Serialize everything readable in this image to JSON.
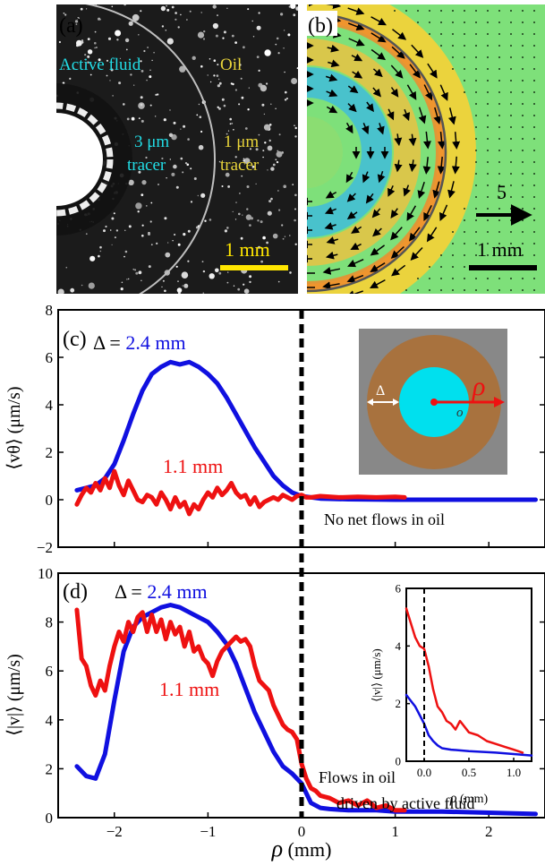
{
  "panel_a": {
    "label": "(a)",
    "active_fluid": "Active fluid",
    "oil": "Oil",
    "tracer3_l1": "3 μm",
    "tracer3_l2": "tracer",
    "tracer1_l1": "1 μm",
    "tracer1_l2": "tracer",
    "scale_label": "1 mm",
    "colors": {
      "active_text": "#22dde6",
      "oil_text": "#e8d43a",
      "scalebar": "#ffe600"
    }
  },
  "panel_b": {
    "label": "(b)",
    "arrow_scale": "5",
    "scale_label": "1 mm"
  },
  "chart_data": [
    {
      "type": "line",
      "panel": "(c)",
      "ylabel": "⟨vθ⟩ (μm/s)",
      "xlim": [
        -2.6,
        2.6
      ],
      "ylim": [
        -2,
        8
      ],
      "yticks": [
        -2,
        0,
        2,
        4,
        6,
        8
      ],
      "delta_prefix": "Δ = ",
      "annotation": "No net flows in oil",
      "series": [
        {
          "name": "2.4 mm",
          "color": "#1010e0",
          "x": [
            -2.4,
            -2.3,
            -2.2,
            -2.1,
            -2.0,
            -1.9,
            -1.8,
            -1.7,
            -1.6,
            -1.5,
            -1.4,
            -1.3,
            -1.2,
            -1.1,
            -1.0,
            -0.9,
            -0.8,
            -0.7,
            -0.6,
            -0.5,
            -0.4,
            -0.3,
            -0.2,
            -0.1,
            0.0,
            0.2,
            0.5,
            1.0,
            1.5,
            2.0,
            2.5
          ],
          "y": [
            0.4,
            0.5,
            0.6,
            0.9,
            1.5,
            2.5,
            3.6,
            4.6,
            5.3,
            5.6,
            5.8,
            5.7,
            5.8,
            5.6,
            5.3,
            4.9,
            4.3,
            3.6,
            2.9,
            2.2,
            1.6,
            1.0,
            0.6,
            0.3,
            0.15,
            0.05,
            0.02,
            0.0,
            0.0,
            0.0,
            0.0
          ]
        },
        {
          "name": "1.1 mm",
          "color": "#ee1111",
          "x": [
            -2.4,
            -2.35,
            -2.3,
            -2.25,
            -2.2,
            -2.15,
            -2.1,
            -2.05,
            -2.0,
            -1.95,
            -1.9,
            -1.85,
            -1.8,
            -1.75,
            -1.7,
            -1.65,
            -1.6,
            -1.55,
            -1.5,
            -1.45,
            -1.4,
            -1.35,
            -1.3,
            -1.25,
            -1.2,
            -1.15,
            -1.1,
            -1.05,
            -1.0,
            -0.95,
            -0.9,
            -0.85,
            -0.8,
            -0.75,
            -0.7,
            -0.65,
            -0.6,
            -0.55,
            -0.5,
            -0.45,
            -0.4,
            -0.35,
            -0.3,
            -0.25,
            -0.2,
            -0.15,
            -0.1,
            -0.05,
            0.0,
            0.05,
            0.1,
            0.2,
            0.4,
            0.6,
            0.8,
            1.0,
            1.1
          ],
          "y": [
            -0.2,
            0.2,
            0.5,
            0.3,
            0.7,
            0.4,
            0.9,
            0.5,
            1.2,
            0.6,
            0.2,
            0.8,
            0.4,
            0.0,
            -0.1,
            0.2,
            0.1,
            -0.2,
            0.3,
            0.0,
            -0.4,
            0.1,
            -0.3,
            -0.1,
            -0.6,
            -0.2,
            -0.4,
            0.0,
            0.3,
            0.1,
            0.5,
            0.2,
            0.4,
            0.7,
            0.3,
            0.1,
            0.2,
            -0.2,
            0.1,
            -0.3,
            -0.1,
            0.0,
            0.1,
            0.0,
            0.2,
            0.1,
            0.0,
            0.15,
            0.2,
            0.1,
            0.1,
            0.15,
            0.1,
            0.12,
            0.1,
            0.12,
            0.1
          ]
        }
      ]
    },
    {
      "type": "line",
      "panel": "(d)",
      "xlabel_sym": "ρ",
      "xlabel_unit": " (mm)",
      "ylabel": "⟨|v|⟩ (μm/s)",
      "xlim": [
        -2.6,
        2.6
      ],
      "ylim": [
        0,
        10
      ],
      "xticks": [
        -2,
        -1,
        0,
        1,
        2
      ],
      "yticks": [
        0,
        2,
        4,
        6,
        8,
        10
      ],
      "delta_prefix": "Δ = ",
      "annotation_l1": "Flows in oil",
      "annotation_l2": "driven by active fluid",
      "series": [
        {
          "name": "2.4 mm",
          "color": "#1010e0",
          "x": [
            -2.4,
            -2.3,
            -2.2,
            -2.1,
            -2.0,
            -1.9,
            -1.8,
            -1.7,
            -1.6,
            -1.5,
            -1.4,
            -1.3,
            -1.2,
            -1.1,
            -1.0,
            -0.9,
            -0.8,
            -0.7,
            -0.6,
            -0.5,
            -0.4,
            -0.3,
            -0.2,
            -0.1,
            0.0,
            0.1,
            0.2,
            0.3,
            0.5,
            0.8,
            1.0,
            1.5,
            2.0,
            2.5
          ],
          "y": [
            2.1,
            1.7,
            1.6,
            2.6,
            4.8,
            6.8,
            7.8,
            8.2,
            8.4,
            8.6,
            8.7,
            8.6,
            8.4,
            8.2,
            8.0,
            7.6,
            7.1,
            6.3,
            5.3,
            4.3,
            3.5,
            2.7,
            2.1,
            1.8,
            1.4,
            0.6,
            0.4,
            0.35,
            0.3,
            0.3,
            0.25,
            0.25,
            0.2,
            0.15
          ]
        },
        {
          "name": "1.1 mm",
          "color": "#ee1111",
          "x": [
            -2.4,
            -2.35,
            -2.3,
            -2.25,
            -2.2,
            -2.15,
            -2.1,
            -2.05,
            -2.0,
            -1.95,
            -1.9,
            -1.85,
            -1.8,
            -1.75,
            -1.7,
            -1.65,
            -1.6,
            -1.55,
            -1.5,
            -1.45,
            -1.4,
            -1.35,
            -1.3,
            -1.25,
            -1.2,
            -1.15,
            -1.1,
            -1.05,
            -1.0,
            -0.95,
            -0.9,
            -0.85,
            -0.8,
            -0.75,
            -0.7,
            -0.65,
            -0.6,
            -0.55,
            -0.5,
            -0.45,
            -0.4,
            -0.35,
            -0.3,
            -0.25,
            -0.2,
            -0.15,
            -0.1,
            -0.05,
            0.0,
            0.05,
            0.1,
            0.15,
            0.2,
            0.3,
            0.4,
            0.5,
            0.6,
            0.7,
            0.8,
            0.9,
            1.0,
            1.1
          ],
          "y": [
            8.5,
            6.5,
            6.2,
            5.4,
            5.0,
            5.6,
            5.2,
            6.2,
            7.0,
            7.6,
            7.2,
            8.0,
            7.6,
            8.2,
            8.4,
            7.6,
            8.3,
            7.6,
            8.1,
            7.3,
            8.0,
            7.5,
            7.8,
            7.0,
            7.6,
            6.8,
            7.0,
            6.5,
            6.3,
            5.8,
            6.4,
            6.8,
            7.0,
            7.2,
            7.4,
            7.2,
            7.3,
            7.0,
            6.2,
            5.6,
            5.4,
            5.2,
            4.6,
            4.2,
            3.8,
            3.6,
            3.5,
            3.2,
            2.2,
            1.6,
            1.2,
            1.1,
            0.9,
            0.8,
            0.6,
            0.7,
            0.5,
            0.7,
            0.4,
            0.5,
            0.3,
            0.3
          ]
        }
      ]
    },
    {
      "type": "line",
      "panel": "inset",
      "xlabel_sym": "ρ",
      "xlabel_unit": " (mm)",
      "ylabel": "⟨|v|⟩ (μm/s)",
      "xlim": [
        -0.2,
        1.2
      ],
      "ylim": [
        0,
        6
      ],
      "xticks": [
        0.0,
        0.5,
        1.0
      ],
      "xtick_labels": [
        "0.0",
        "0.5",
        "1.0"
      ],
      "yticks": [
        0,
        2,
        4,
        6
      ],
      "series": [
        {
          "name": "2.4 mm",
          "color": "#1010e0",
          "x": [
            -0.2,
            -0.15,
            -0.1,
            -0.05,
            0.0,
            0.05,
            0.1,
            0.15,
            0.2,
            0.3,
            0.5,
            0.8,
            1.0,
            1.2
          ],
          "y": [
            2.3,
            2.1,
            1.9,
            1.6,
            1.3,
            0.9,
            0.7,
            0.55,
            0.45,
            0.4,
            0.35,
            0.3,
            0.25,
            0.2
          ]
        },
        {
          "name": "1.1 mm",
          "color": "#ee1111",
          "x": [
            -0.2,
            -0.15,
            -0.1,
            -0.05,
            0.0,
            0.05,
            0.1,
            0.15,
            0.2,
            0.25,
            0.3,
            0.35,
            0.4,
            0.5,
            0.6,
            0.7,
            0.8,
            0.9,
            1.0,
            1.1
          ],
          "y": [
            5.3,
            4.8,
            4.3,
            4.0,
            3.9,
            3.3,
            2.5,
            1.9,
            1.7,
            1.4,
            1.3,
            1.1,
            1.4,
            1.0,
            0.9,
            0.7,
            0.6,
            0.5,
            0.4,
            0.3
          ]
        }
      ]
    }
  ],
  "schematic": {
    "delta": "Δ",
    "rho": "ρ",
    "origin": "o",
    "colors": {
      "bg": "#888888",
      "annulus": "#a8723e",
      "core": "#00e0ee",
      "arrow": "#ee1111"
    }
  }
}
